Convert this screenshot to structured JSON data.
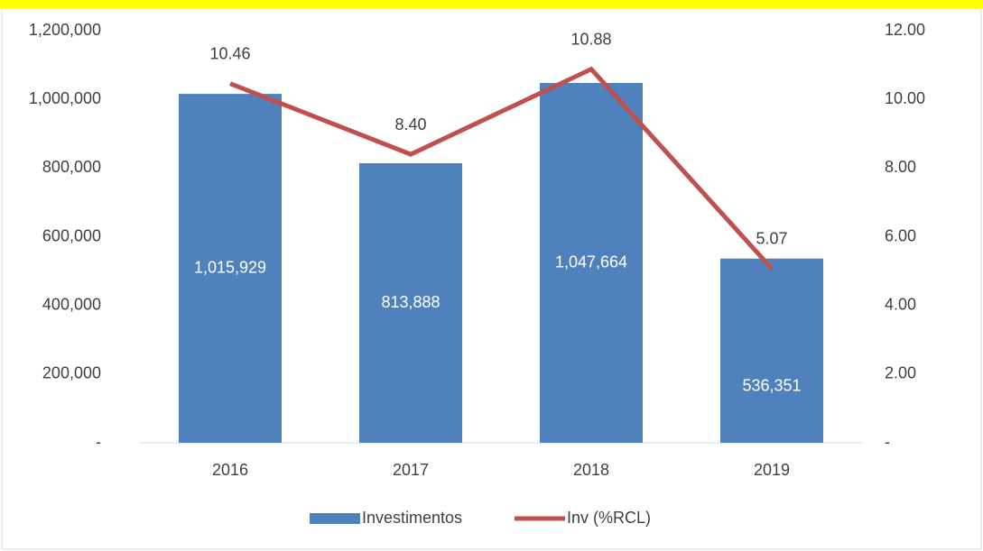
{
  "chart_data": {
    "type": "bar",
    "categories": [
      "2016",
      "2017",
      "2018",
      "2019"
    ],
    "series": [
      {
        "name": "Investimentos",
        "type": "bar",
        "color": "#4f81bd",
        "values": [
          1015929,
          813888,
          1047664,
          536351
        ],
        "value_labels": [
          "1,015,929",
          "813,888",
          "1,047,664",
          "536,351"
        ]
      },
      {
        "name": "Inv (%RCL)",
        "type": "line",
        "axis": "y2",
        "color": "#c0504d",
        "values": [
          10.46,
          8.4,
          10.88,
          5.07
        ],
        "value_labels": [
          "10.46",
          "8.40",
          "10.88",
          "5.07"
        ]
      }
    ],
    "ylim": [
      0,
      1200000
    ],
    "yticks": [
      {
        "value": 0,
        "label": "-"
      },
      {
        "value": 200000,
        "label": "200,000"
      },
      {
        "value": 400000,
        "label": "400,000"
      },
      {
        "value": 600000,
        "label": "600,000"
      },
      {
        "value": 800000,
        "label": "800,000"
      },
      {
        "value": 1000000,
        "label": "1,000,000"
      },
      {
        "value": 1200000,
        "label": "1,200,000"
      }
    ],
    "y2lim": [
      0,
      12
    ],
    "y2ticks": [
      {
        "value": 0,
        "label": "-"
      },
      {
        "value": 2,
        "label": "2.00"
      },
      {
        "value": 4,
        "label": "4.00"
      },
      {
        "value": 6,
        "label": "6.00"
      },
      {
        "value": 8,
        "label": "8.00"
      },
      {
        "value": 10,
        "label": "10.00"
      },
      {
        "value": 12,
        "label": "12.00"
      }
    ],
    "legend": "bottom",
    "grid": false
  }
}
